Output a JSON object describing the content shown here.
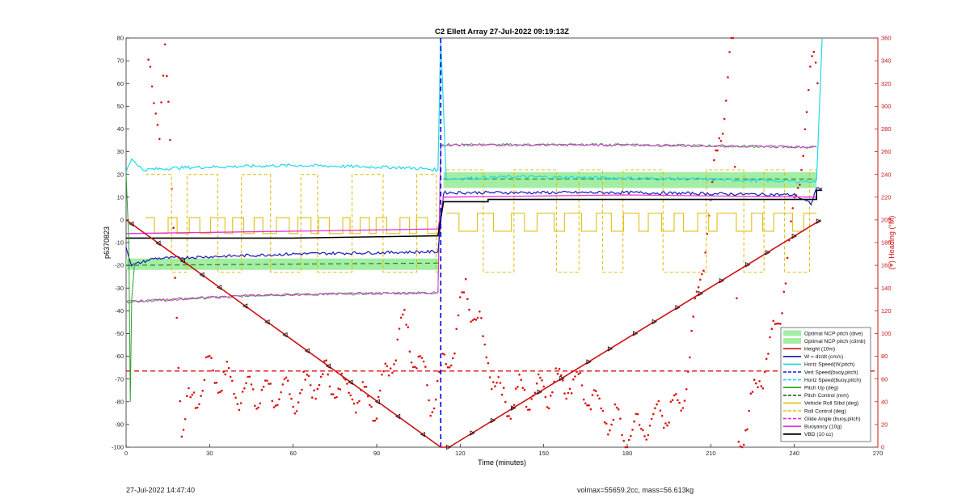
{
  "chart_data": {
    "type": "line",
    "title": "C2 Ellett Array 27-Jul-2022 09:19:13Z",
    "xlabel": "Time (minutes)",
    "ylabel": "p6370823",
    "ylabel_right": "(+) Heading (°M)",
    "xlim": [
      0,
      270
    ],
    "ylim": [
      -100,
      80
    ],
    "ylim_right": [
      0,
      360
    ],
    "x_ticks": [
      0,
      30,
      60,
      90,
      120,
      150,
      180,
      210,
      240,
      270
    ],
    "y_ticks": [
      -100,
      -90,
      -80,
      -70,
      -60,
      -50,
      -40,
      -30,
      -20,
      -10,
      0,
      10,
      20,
      30,
      40,
      50,
      60,
      70,
      80
    ],
    "y_right_ticks": [
      0,
      20,
      40,
      60,
      80,
      100,
      120,
      140,
      160,
      180,
      200,
      220,
      240,
      260,
      280,
      300,
      320,
      340,
      360
    ],
    "legend_position": "bottom-right",
    "legend": [
      "Optimal NCP pitch (dive)",
      "Optimal NCP pitch (climb)",
      "Height (10m)",
      "W = dz/dt (cm/s)",
      "Horiz Speed(W,pitch)",
      "Vert Speed(buoy,pitch)",
      "Horiz Speed(buoy,pitch)",
      "Pitch Up (deg)",
      "Pitch Control (mm)",
      "Vehicle Roll Stbd (deg)",
      "Roll Control (deg)",
      "Glide Angle (buoy,pitch)",
      "Buoyancy (10g)",
      "VBD (10 cc)"
    ],
    "colors": {
      "ncp_band": "#a4eda4",
      "height": "#cc1111",
      "w": "#1a1ab0",
      "horiz_speed": "#20d8e8",
      "pitch": "#2aa02a",
      "roll": "#e0c012",
      "glide": "#e030e0",
      "buoyancy": "#a040d0",
      "vbd": "#000000",
      "heading": "#dd1111",
      "apogee": "#1a1ae0"
    },
    "apogee_x": 113,
    "heading_mean": 67,
    "series": {
      "height": [
        [
          0,
          0
        ],
        [
          113,
          -100
        ],
        [
          116,
          -100
        ],
        [
          249.5,
          0
        ]
      ],
      "horiz_speed": [
        [
          0,
          21
        ],
        [
          2,
          27
        ],
        [
          6,
          22
        ],
        [
          20,
          23
        ],
        [
          60,
          24
        ],
        [
          100,
          23
        ],
        [
          112,
          22
        ],
        [
          113,
          80
        ],
        [
          115,
          18
        ],
        [
          140,
          19
        ],
        [
          200,
          18
        ],
        [
          240,
          17
        ],
        [
          248,
          17
        ],
        [
          250,
          80
        ]
      ],
      "w": [
        [
          0,
          -12
        ],
        [
          2,
          -20
        ],
        [
          10,
          -17
        ],
        [
          60,
          -15
        ],
        [
          112,
          -14
        ],
        [
          114,
          12
        ],
        [
          140,
          12
        ],
        [
          180,
          12
        ],
        [
          240,
          11
        ],
        [
          246,
          7
        ],
        [
          248,
          14
        ],
        [
          250,
          14
        ]
      ],
      "buoyancy_dive": [
        [
          0,
          -36
        ],
        [
          50,
          -33
        ],
        [
          112,
          -32
        ],
        [
          113,
          33
        ],
        [
          180,
          33
        ],
        [
          248,
          32
        ]
      ],
      "glide": [
        [
          0,
          -6
        ],
        [
          60,
          -5
        ],
        [
          112,
          -4
        ],
        [
          114,
          10
        ],
        [
          180,
          11
        ],
        [
          248,
          10
        ]
      ],
      "vbd": [
        [
          0,
          -8
        ],
        [
          60,
          -8
        ],
        [
          112,
          -7
        ],
        [
          114,
          8
        ],
        [
          180,
          9
        ],
        [
          248,
          10
        ]
      ],
      "heading_samples": [
        [
          8,
          330
        ],
        [
          10,
          300
        ],
        [
          12,
          290
        ],
        [
          14,
          355
        ],
        [
          20,
          20
        ],
        [
          30,
          70
        ],
        [
          40,
          50
        ],
        [
          60,
          45
        ],
        [
          70,
          60
        ],
        [
          90,
          40
        ],
        [
          100,
          110
        ],
        [
          110,
          40
        ],
        [
          118,
          90
        ],
        [
          122,
          140
        ],
        [
          135,
          40
        ],
        [
          160,
          60
        ],
        [
          180,
          10
        ],
        [
          200,
          40
        ],
        [
          218,
          360
        ],
        [
          220,
          0
        ],
        [
          235,
          120
        ],
        [
          247,
          340
        ],
        [
          249,
          320
        ]
      ]
    }
  },
  "footer": {
    "left": "27-Jul-2022 14:47:40",
    "right": "volmax=55659.2cc, mass=56.613kg"
  }
}
